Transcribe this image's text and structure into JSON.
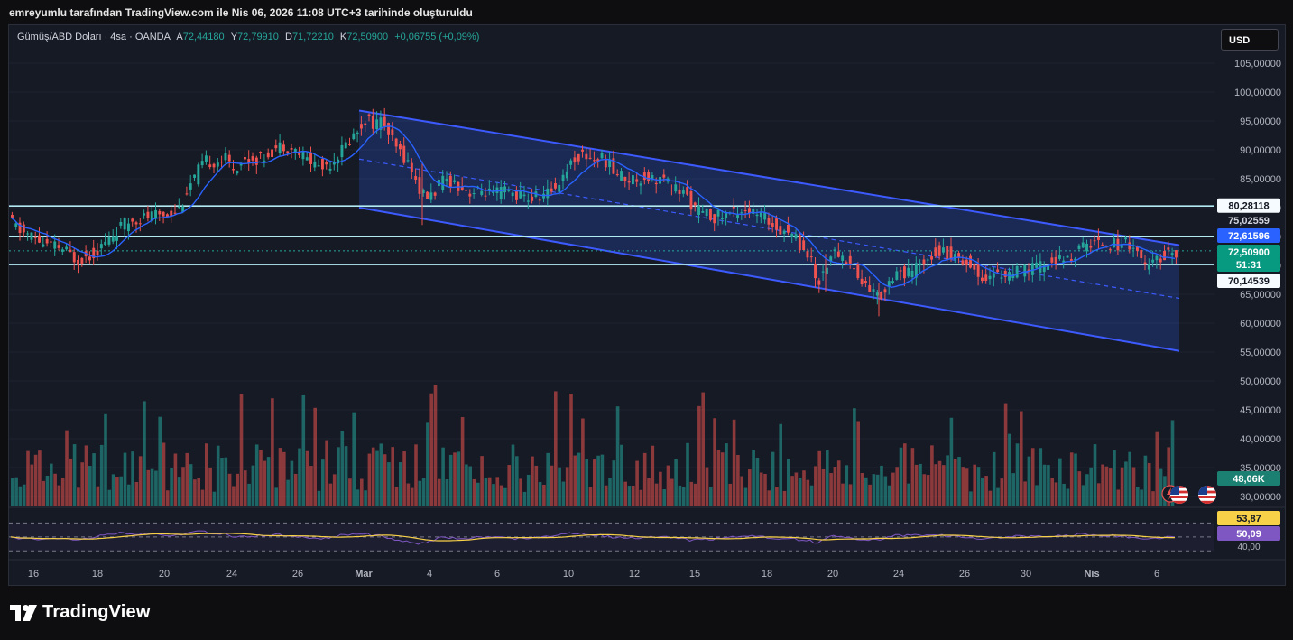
{
  "caption": "emreyumlu tarafından TradingView.com ile Nis 06, 2026 11:08 UTC+3 tarihinde oluşturuldu",
  "legend": {
    "symbol": "Gümüş/ABD Doları · 4sa · OANDA",
    "open_label": "A",
    "open": "72,44180",
    "high_label": "Y",
    "high": "72,79910",
    "low_label": "D",
    "low": "71,72210",
    "close_label": "K",
    "close": "72,50900",
    "change": "+0,06755 (+0,09%)"
  },
  "currency": "USD",
  "brand": "TradingView",
  "colors": {
    "up": "#26a69a",
    "down": "#ef5350",
    "ma": "#2962ff",
    "channel": "#3d5afe",
    "level": "#b2ebf2",
    "rsi": "#7e57c2",
    "rsi_ma": "#f7d147"
  },
  "chart_data": {
    "type": "candlestick",
    "price_axis": {
      "ticks": [
        "105,00000",
        "100,00000",
        "95,00000",
        "90,00000",
        "85,00000",
        "80,00000",
        "75,00000",
        "70,00000",
        "65,00000",
        "60,00000",
        "55,00000",
        "50,00000",
        "45,00000",
        "40,00000",
        "35,00000",
        "30,00000"
      ],
      "range": [
        26.5,
        108
      ]
    },
    "time_axis": {
      "ticks": [
        {
          "label": "16",
          "day": 16
        },
        {
          "label": "18",
          "day": 18
        },
        {
          "label": "20",
          "day": 20
        },
        {
          "label": "24",
          "day": 24
        },
        {
          "label": "26",
          "day": 26
        },
        {
          "label": "Mar",
          "day": 28
        },
        {
          "label": "4",
          "day": 31
        },
        {
          "label": "6",
          "day": 33
        },
        {
          "label": "10",
          "day": 35
        },
        {
          "label": "12",
          "day": 37
        },
        {
          "label": "15",
          "day": 39
        },
        {
          "label": "18",
          "day": 41
        },
        {
          "label": "20",
          "day": 43
        },
        {
          "label": "24",
          "day": 45
        },
        {
          "label": "26",
          "day": 47
        },
        {
          "label": "30",
          "day": 49
        },
        {
          "label": "Nis",
          "day": 51
        },
        {
          "label": "6",
          "day": 53
        }
      ]
    },
    "ohlc": {
      "open": "72,44180",
      "high": "72,79910",
      "low": "71,72210",
      "close": "72,50900",
      "change": "+0,06755 (+0,09%)"
    },
    "price_path": [
      [
        0,
        79
      ],
      [
        5,
        77.5
      ],
      [
        15,
        76
      ],
      [
        28,
        75
      ],
      [
        45,
        73.5
      ],
      [
        60,
        73
      ],
      [
        78,
        71
      ],
      [
        95,
        72
      ],
      [
        110,
        74
      ],
      [
        125,
        76.5
      ],
      [
        140,
        78
      ],
      [
        160,
        78.5
      ],
      [
        178,
        79
      ],
      [
        192,
        80
      ],
      [
        200,
        83
      ],
      [
        208,
        85
      ],
      [
        215,
        87
      ],
      [
        222,
        88
      ],
      [
        232,
        88
      ],
      [
        242,
        88.5
      ],
      [
        252,
        87
      ],
      [
        262,
        88
      ],
      [
        272,
        88.5
      ],
      [
        282,
        88.5
      ],
      [
        295,
        90
      ],
      [
        308,
        91
      ],
      [
        318,
        90
      ],
      [
        328,
        89
      ],
      [
        338,
        88
      ],
      [
        350,
        87
      ],
      [
        360,
        88
      ],
      [
        372,
        90
      ],
      [
        382,
        92
      ],
      [
        392,
        94
      ],
      [
        398,
        95.5
      ],
      [
        408,
        94.5
      ],
      [
        418,
        95
      ],
      [
        425,
        92
      ],
      [
        433,
        90
      ],
      [
        440,
        89
      ],
      [
        448,
        87
      ],
      [
        455,
        84
      ],
      [
        462,
        82
      ],
      [
        470,
        82
      ],
      [
        480,
        84
      ],
      [
        490,
        85
      ],
      [
        500,
        84
      ],
      [
        510,
        83
      ],
      [
        520,
        82.5
      ],
      [
        530,
        83
      ],
      [
        540,
        82
      ],
      [
        550,
        83
      ],
      [
        560,
        82.5
      ],
      [
        570,
        82
      ],
      [
        580,
        81.5
      ],
      [
        590,
        82
      ],
      [
        600,
        82.5
      ],
      [
        610,
        84
      ],
      [
        618,
        86
      ],
      [
        626,
        88
      ],
      [
        634,
        89
      ],
      [
        642,
        89
      ],
      [
        650,
        88.5
      ],
      [
        658,
        88.5
      ],
      [
        666,
        88
      ],
      [
        674,
        86
      ],
      [
        682,
        85.5
      ],
      [
        690,
        85
      ],
      [
        700,
        85
      ],
      [
        710,
        85.5
      ],
      [
        718,
        85
      ],
      [
        726,
        85
      ],
      [
        734,
        84
      ],
      [
        744,
        83
      ],
      [
        754,
        82
      ],
      [
        762,
        80
      ],
      [
        770,
        79
      ],
      [
        780,
        78.5
      ],
      [
        790,
        78.5
      ],
      [
        800,
        79
      ],
      [
        810,
        79.5
      ],
      [
        818,
        80
      ],
      [
        826,
        79
      ],
      [
        834,
        78.5
      ],
      [
        842,
        78
      ],
      [
        850,
        77
      ],
      [
        858,
        76.5
      ],
      [
        866,
        76
      ],
      [
        874,
        75
      ],
      [
        882,
        73
      ],
      [
        890,
        72
      ],
      [
        896,
        68
      ],
      [
        902,
        67.5
      ],
      [
        908,
        70
      ],
      [
        914,
        72
      ],
      [
        922,
        72
      ],
      [
        930,
        71
      ],
      [
        938,
        70
      ],
      [
        946,
        67
      ],
      [
        954,
        66.5
      ],
      [
        962,
        65
      ],
      [
        968,
        64.5
      ],
      [
        974,
        66
      ],
      [
        980,
        68
      ],
      [
        988,
        69.5
      ],
      [
        996,
        68
      ],
      [
        1004,
        69
      ],
      [
        1012,
        70
      ],
      [
        1020,
        71.5
      ],
      [
        1028,
        72.5
      ],
      [
        1036,
        72.5
      ],
      [
        1044,
        72
      ],
      [
        1052,
        71.5
      ],
      [
        1060,
        71
      ],
      [
        1068,
        70
      ],
      [
        1076,
        68.5
      ],
      [
        1084,
        68
      ],
      [
        1092,
        68.5
      ],
      [
        1100,
        68.5
      ],
      [
        1108,
        68.5
      ],
      [
        1116,
        68.5
      ],
      [
        1124,
        69
      ],
      [
        1132,
        69.5
      ],
      [
        1140,
        69.5
      ],
      [
        1148,
        70
      ],
      [
        1156,
        70.5
      ],
      [
        1164,
        71
      ],
      [
        1172,
        70.5
      ],
      [
        1180,
        71.5
      ],
      [
        1188,
        72.5
      ],
      [
        1196,
        73.5
      ],
      [
        1204,
        74
      ],
      [
        1212,
        74
      ],
      [
        1220,
        74
      ],
      [
        1228,
        73.5
      ],
      [
        1236,
        74
      ],
      [
        1244,
        74
      ],
      [
        1252,
        73
      ],
      [
        1258,
        70.5
      ],
      [
        1264,
        69.5
      ],
      [
        1270,
        70
      ],
      [
        1276,
        71
      ],
      [
        1284,
        72
      ],
      [
        1292,
        72.4
      ],
      [
        1296,
        72.5
      ]
    ],
    "levels": [
      {
        "label": "80,28118",
        "price": 80.28,
        "kind": "resistance"
      },
      {
        "label": "75,02559",
        "price": 75.03,
        "kind": "resistance"
      },
      {
        "label": "72,61596",
        "price": 72.62,
        "kind": "ma"
      },
      {
        "label": "72,50900",
        "price": 72.51,
        "kind": "last"
      },
      {
        "label": "51:31",
        "kind": "countdown"
      },
      {
        "label": "70,14539",
        "price": 70.15,
        "kind": "support"
      }
    ],
    "channel": {
      "upper": {
        "from": [
          0,
          96.8
        ],
        "to": [
          1,
          73.5
        ]
      },
      "lower": {
        "from": [
          0,
          80
        ],
        "to": [
          1,
          55.2
        ]
      },
      "mid": {
        "from": [
          0,
          88.4
        ],
        "to": [
          1,
          64.3
        ]
      }
    },
    "volume": {
      "last_label": "48,06K"
    },
    "rsi": {
      "value": "50,09",
      "ma_value": "53,87",
      "levels": [
        70,
        50,
        30
      ],
      "tick": "40,00"
    }
  }
}
